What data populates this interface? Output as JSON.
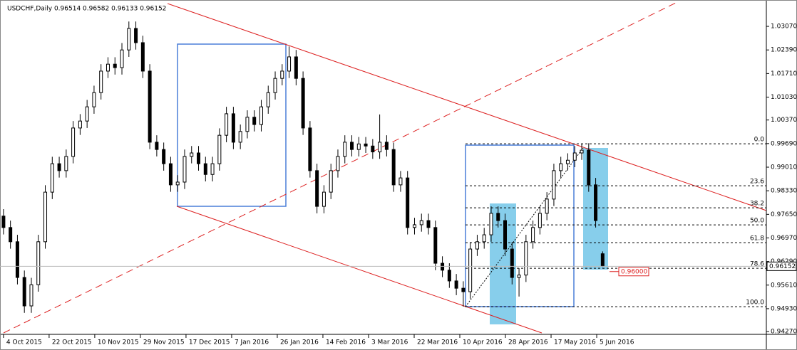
{
  "chart_data": {
    "type": "candlestick",
    "title": "USDCHF,Daily  0.96514 0.96582 0.96133 0.96152",
    "x": [
      0,
      2,
      4,
      6,
      8,
      10,
      12,
      14,
      16,
      18,
      20,
      22,
      24,
      26,
      28,
      30,
      32,
      34,
      36,
      38,
      40,
      42,
      44,
      46,
      48,
      50,
      52,
      54,
      56,
      58,
      60,
      62,
      64,
      66,
      68,
      70,
      72,
      74,
      76,
      78,
      80,
      82,
      84,
      86,
      88,
      90,
      92,
      94,
      96,
      98,
      100,
      102,
      104,
      106,
      108,
      110,
      112,
      114,
      116,
      118,
      120,
      122,
      124,
      126,
      128,
      130,
      132,
      134,
      136,
      138,
      140,
      142,
      144,
      146,
      148,
      150,
      152,
      154,
      156,
      158,
      160,
      162,
      164,
      166,
      168,
      170,
      172
    ],
    "open": [
      0.976,
      0.9727,
      0.9686,
      0.9583,
      0.9501,
      0.9562,
      0.9686,
      0.9829,
      0.9911,
      0.9891,
      0.9932,
      1.0014,
      1.0034,
      1.0075,
      1.0116,
      1.0178,
      1.0198,
      1.0188,
      1.0239,
      1.0301,
      1.026,
      1.0178,
      0.9973,
      0.9952,
      0.9911,
      0.985,
      0.9858,
      0.9932,
      0.9942,
      0.9911,
      0.988,
      0.9911,
      0.9993,
      1.0055,
      0.9973,
      1.0004,
      1.0045,
      1.0024,
      1.0075,
      1.0116,
      1.0157,
      1.0178,
      1.0219,
      1.0157,
      1.0014,
      0.9891,
      0.9788,
      0.9829,
      0.9891,
      0.9932,
      0.9973,
      0.9952,
      0.9968,
      0.9962,
      0.9945,
      0.9973,
      0.9952,
      0.985,
      0.987,
      0.9727,
      0.9735,
      0.9747,
      0.9727,
      0.9624,
      0.9604,
      0.9573,
      0.9552,
      0.9542,
      0.9665,
      0.9686,
      0.9706,
      0.9768,
      0.9747,
      0.9665,
      0.9583,
      0.959,
      0.9686,
      0.9727,
      0.9768,
      0.9809,
      0.9891,
      0.9911,
      0.9921,
      0.9942,
      0.995,
      0.985,
      0.96514
    ],
    "high": [
      0.978,
      0.9747,
      0.9706,
      0.9603,
      0.9582,
      0.9706,
      0.9849,
      0.9931,
      0.9931,
      0.9952,
      1.0034,
      1.0054,
      1.0095,
      1.0136,
      1.0198,
      1.0218,
      1.0218,
      1.0259,
      1.0321,
      1.0321,
      1.028,
      1.0198,
      0.9993,
      0.9972,
      0.9931,
      0.9878,
      0.9952,
      0.9962,
      0.9962,
      0.9931,
      0.9931,
      1.0013,
      1.0075,
      1.0075,
      1.0024,
      1.0065,
      1.0065,
      1.0095,
      1.0136,
      1.0177,
      1.0198,
      1.0249,
      1.0239,
      1.0177,
      1.0034,
      0.9911,
      0.9849,
      0.9911,
      0.9952,
      0.9993,
      0.9993,
      0.9988,
      0.9988,
      0.9982,
      1.0053,
      0.9993,
      0.9972,
      0.989,
      0.989,
      0.9755,
      0.9767,
      0.9767,
      0.9747,
      0.9644,
      0.9624,
      0.9593,
      0.9572,
      0.9685,
      0.9706,
      0.9726,
      0.9788,
      0.9788,
      0.9767,
      0.9685,
      0.961,
      0.9706,
      0.9747,
      0.9788,
      0.9829,
      0.9911,
      0.9931,
      0.9941,
      0.9962,
      0.9969,
      0.997,
      0.987,
      0.96582
    ],
    "low": [
      0.9707,
      0.9666,
      0.9563,
      0.9481,
      0.9481,
      0.9542,
      0.9666,
      0.9809,
      0.9871,
      0.9871,
      0.9912,
      0.9994,
      1.0014,
      1.0055,
      1.0096,
      1.0158,
      1.0168,
      1.0168,
      1.0219,
      1.024,
      1.0158,
      0.9953,
      0.9932,
      0.9891,
      0.983,
      0.983,
      0.9838,
      0.9912,
      0.9891,
      0.986,
      0.986,
      0.9891,
      0.9973,
      0.9953,
      0.9953,
      0.9984,
      1.0004,
      1.0004,
      1.0055,
      1.0096,
      1.0137,
      1.0158,
      1.0137,
      0.9994,
      0.9871,
      0.9768,
      0.9768,
      0.9809,
      0.9871,
      0.9912,
      0.9932,
      0.9932,
      0.9942,
      0.9925,
      0.9925,
      0.9932,
      0.983,
      0.983,
      0.9707,
      0.9707,
      0.9715,
      0.9707,
      0.9604,
      0.9584,
      0.9553,
      0.9532,
      0.9499,
      0.9522,
      0.9645,
      0.9666,
      0.9686,
      0.9727,
      0.9645,
      0.9563,
      0.9528,
      0.957,
      0.9666,
      0.9707,
      0.9748,
      0.9789,
      0.9871,
      0.9891,
      0.9901,
      0.9922,
      0.983,
      0.9727,
      0.96133
    ],
    "close": [
      0.9727,
      0.9686,
      0.9583,
      0.9501,
      0.9562,
      0.9686,
      0.9829,
      0.9911,
      0.9891,
      0.9932,
      1.0014,
      1.0034,
      1.0075,
      1.0116,
      1.0178,
      1.0198,
      1.0188,
      1.0239,
      1.0301,
      1.026,
      1.0178,
      0.9973,
      0.9952,
      0.9911,
      0.985,
      0.9858,
      0.9932,
      0.9942,
      0.9911,
      0.988,
      0.9911,
      0.9993,
      1.0055,
      0.9973,
      1.0004,
      1.0045,
      1.0024,
      1.0075,
      1.0116,
      1.0157,
      1.0178,
      1.0219,
      1.0157,
      1.0014,
      0.9891,
      0.9788,
      0.9829,
      0.9891,
      0.9932,
      0.9973,
      0.9952,
      0.9968,
      0.9962,
      0.9945,
      0.9973,
      0.9952,
      0.985,
      0.987,
      0.9727,
      0.9735,
      0.9747,
      0.9727,
      0.9624,
      0.9604,
      0.9573,
      0.9552,
      0.9542,
      0.9665,
      0.9686,
      0.9706,
      0.9768,
      0.9747,
      0.9665,
      0.9583,
      0.959,
      0.9686,
      0.9727,
      0.9768,
      0.9809,
      0.9891,
      0.9911,
      0.9921,
      0.9942,
      0.995,
      0.985,
      0.9747,
      0.96152
    ],
    "up_color": "#ffffff",
    "down_color": "#000000",
    "edge_color": "#000000",
    "xlim": [
      -1,
      219
    ],
    "xticks": [
      {
        "value": 0,
        "label": "4 Oct 2015"
      },
      {
        "value": 13.1,
        "label": "22 Oct 2015"
      },
      {
        "value": 26.2,
        "label": "10 Nov 2015"
      },
      {
        "value": 39.3,
        "label": "29 Nov 2015"
      },
      {
        "value": 52.4,
        "label": "17 Dec 2015"
      },
      {
        "value": 65.5,
        "label": "7 Jan 2016"
      },
      {
        "value": 78.6,
        "label": "26 Jan 2016"
      },
      {
        "value": 91.7,
        "label": "14 Feb 2016"
      },
      {
        "value": 104.8,
        "label": "3 Mar 2016"
      },
      {
        "value": 117.9,
        "label": "22 Mar 2016"
      },
      {
        "value": 131,
        "label": "10 Apr 2016"
      },
      {
        "value": 144.1,
        "label": "28 Apr 2016"
      },
      {
        "value": 157.2,
        "label": "17 May 2016"
      },
      {
        "value": 170.3,
        "label": "5 Jun 2016"
      }
    ],
    "ylim": [
      0.9419,
      1.0383
    ],
    "yticks": [
      {
        "value": 1.0307,
        "label": "1.03070"
      },
      {
        "value": 1.0239,
        "label": "1.02390"
      },
      {
        "value": 1.0171,
        "label": "1.01710"
      },
      {
        "value": 1.0103,
        "label": "1.01030"
      },
      {
        "value": 1.0037,
        "label": "1.00370"
      },
      {
        "value": 0.9969,
        "label": "0.99690"
      },
      {
        "value": 0.9901,
        "label": "0.99010"
      },
      {
        "value": 0.9833,
        "label": "0.98330"
      },
      {
        "value": 0.9765,
        "label": "0.97650"
      },
      {
        "value": 0.9697,
        "label": "0.96970"
      },
      {
        "value": 0.9629,
        "label": "0.96290"
      },
      {
        "value": 0.9561,
        "label": "0.95610"
      },
      {
        "value": 0.9493,
        "label": "0.94930"
      },
      {
        "value": 0.9427,
        "label": "0.94270"
      }
    ],
    "last_price": 0.96152,
    "price_alert": {
      "value": 0.96,
      "label": "0.96000"
    },
    "fib_levels": [
      {
        "price": 0.99685,
        "label": "0.0"
      },
      {
        "price": 0.98475,
        "label": "23.6"
      },
      {
        "price": 0.97839,
        "label": "38.2"
      },
      {
        "price": 0.97347,
        "label": "50.0"
      },
      {
        "price": 0.96834,
        "label": "61.8"
      },
      {
        "price": 0.96096,
        "label": "78.6"
      },
      {
        "price": 0.94988,
        "label": "100.0"
      }
    ]
  }
}
